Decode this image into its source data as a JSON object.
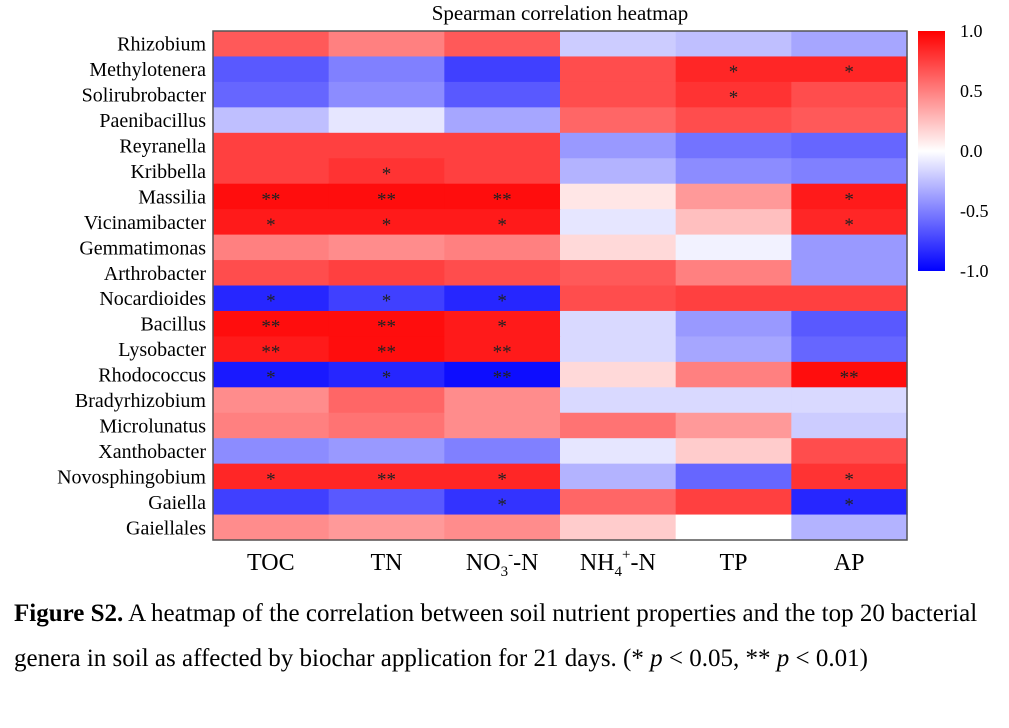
{
  "chart_data": {
    "type": "heatmap",
    "title": "Spearman correlation heatmap",
    "rows": [
      "Rhizobium",
      "Methylotenera",
      "Solirubrobacter",
      "Paenibacillus",
      "Reyranella",
      "Kribbella",
      "Massilia",
      "Vicinamibacter",
      "Gemmatimonas",
      "Arthrobacter",
      "Nocardioides",
      "Bacillus",
      "Lysobacter",
      "Rhodococcus",
      "Bradyrhizobium",
      "Microlunatus",
      "Xanthobacter",
      "Novosphingobium",
      "Gaiella",
      "Gaiellales"
    ],
    "columns": [
      {
        "base": "TOC",
        "sup": "",
        "sub": "",
        "tail": ""
      },
      {
        "base": "TN",
        "sup": "",
        "sub": "",
        "tail": ""
      },
      {
        "base": "NO",
        "sub": "3",
        "sup": "-",
        "tail": "-N"
      },
      {
        "base": "NH",
        "sub": "4",
        "sup": "+",
        "tail": "-N"
      },
      {
        "base": "TP",
        "sup": "",
        "sub": "",
        "tail": ""
      },
      {
        "base": "AP",
        "sup": "",
        "sub": "",
        "tail": ""
      }
    ],
    "values": [
      [
        0.65,
        0.5,
        0.65,
        -0.2,
        -0.25,
        -0.35
      ],
      [
        -0.65,
        -0.5,
        -0.75,
        0.7,
        0.85,
        0.85
      ],
      [
        -0.6,
        -0.45,
        -0.65,
        0.7,
        0.8,
        0.7
      ],
      [
        -0.25,
        -0.1,
        -0.35,
        0.6,
        0.7,
        0.65
      ],
      [
        0.75,
        0.75,
        0.75,
        -0.4,
        -0.55,
        -0.6
      ],
      [
        0.75,
        0.8,
        0.75,
        -0.3,
        -0.45,
        -0.5
      ],
      [
        0.95,
        0.95,
        0.95,
        0.1,
        0.4,
        0.9
      ],
      [
        0.9,
        0.9,
        0.9,
        -0.1,
        0.25,
        0.85
      ],
      [
        0.5,
        0.45,
        0.5,
        0.15,
        -0.05,
        -0.4
      ],
      [
        0.7,
        0.75,
        0.7,
        0.65,
        0.5,
        -0.4
      ],
      [
        -0.85,
        -0.75,
        -0.85,
        0.7,
        0.75,
        0.75
      ],
      [
        0.95,
        0.95,
        0.9,
        -0.15,
        -0.4,
        -0.65
      ],
      [
        0.9,
        0.95,
        0.9,
        -0.15,
        -0.35,
        -0.6
      ],
      [
        -0.9,
        -0.85,
        -0.95,
        0.15,
        0.5,
        0.95
      ],
      [
        0.45,
        0.6,
        0.45,
        -0.15,
        -0.15,
        -0.15
      ],
      [
        0.5,
        0.55,
        0.45,
        0.55,
        0.4,
        -0.2
      ],
      [
        -0.45,
        -0.4,
        -0.5,
        -0.1,
        0.2,
        0.7
      ],
      [
        0.85,
        0.85,
        0.85,
        -0.3,
        -0.6,
        0.8
      ],
      [
        -0.75,
        -0.65,
        -0.8,
        0.6,
        0.75,
        -0.85
      ],
      [
        0.45,
        0.4,
        0.45,
        0.2,
        0.0,
        -0.3
      ]
    ],
    "significance": [
      [
        "",
        "",
        "",
        "",
        "",
        ""
      ],
      [
        "",
        "",
        "",
        "",
        "*",
        "*"
      ],
      [
        "",
        "",
        "",
        "",
        "*",
        ""
      ],
      [
        "",
        "",
        "",
        "",
        "",
        ""
      ],
      [
        "",
        "",
        "",
        "",
        "",
        ""
      ],
      [
        "",
        "*",
        "",
        "",
        "",
        ""
      ],
      [
        "**",
        "**",
        "**",
        "",
        "",
        "*"
      ],
      [
        "*",
        "*",
        "*",
        "",
        "",
        "*"
      ],
      [
        "",
        "",
        "",
        "",
        "",
        ""
      ],
      [
        "",
        "",
        "",
        "",
        "",
        ""
      ],
      [
        "*",
        "*",
        "*",
        "",
        "",
        ""
      ],
      [
        "**",
        "**",
        "*",
        "",
        "",
        ""
      ],
      [
        "**",
        "**",
        "**",
        "",
        "",
        ""
      ],
      [
        "*",
        "*",
        "**",
        "",
        "",
        "**"
      ],
      [
        "",
        "",
        "",
        "",
        "",
        ""
      ],
      [
        "",
        "",
        "",
        "",
        "",
        ""
      ],
      [
        "",
        "",
        "",
        "",
        "",
        ""
      ],
      [
        "*",
        "**",
        "*",
        "",
        "",
        "*"
      ],
      [
        "",
        "",
        "*",
        "",
        "",
        "*"
      ],
      [
        "",
        "",
        "",
        "",
        "",
        ""
      ]
    ],
    "colorbar": {
      "range": [
        -1.0,
        1.0
      ],
      "ticks": [
        "1.0",
        "0.5",
        "0.0",
        "-0.5",
        "-1.0"
      ],
      "tick_values": [
        1.0,
        0.5,
        0.0,
        -0.5,
        -1.0
      ],
      "low_color": "#0000ff",
      "mid_color": "#ffffff",
      "high_color": "#ff0000"
    },
    "xlabel": "",
    "ylabel": ""
  },
  "caption": {
    "label": "Figure S2.",
    "text_part1": " A heatmap of the correlation between soil nutrient properties and the top 20 bacterial genera in soil as affected by biochar application for 21 days. (* ",
    "p1": "p",
    "text_part2": " < 0.05, ** ",
    "p2": "p",
    "text_part3": " < 0.01)"
  }
}
